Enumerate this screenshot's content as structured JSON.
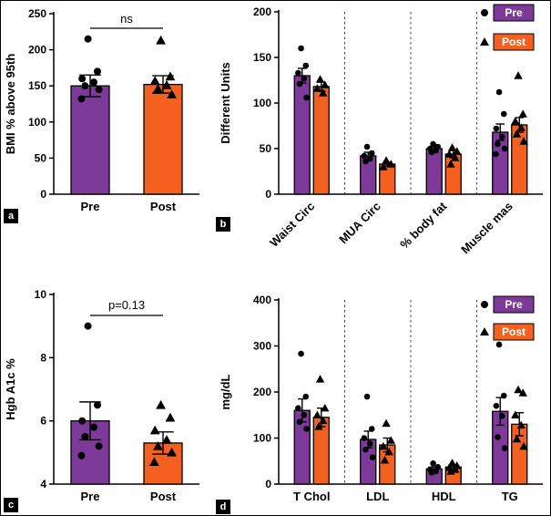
{
  "figure": {
    "background": "#ffffff",
    "border_color": "#000000"
  },
  "colors": {
    "pre": "#7d3a98",
    "post": "#f4601f",
    "marker": "#000000",
    "axis": "#000000",
    "separator": "#333333",
    "panel_label_bg": "#000000",
    "panel_label_fg": "#ffffff",
    "legend_text": "#ffffff"
  },
  "series_labels": {
    "pre": "Pre",
    "post": "Post"
  },
  "panel_labels": [
    "a",
    "b",
    "c",
    "d"
  ],
  "chart_data": [
    {
      "id": "a",
      "type": "bar",
      "panel_label": "a",
      "title": "",
      "ylabel": "BMI % above 95th",
      "xlabel": "",
      "ylim": [
        0,
        250
      ],
      "yticks": [
        0,
        50,
        100,
        150,
        200,
        250
      ],
      "annotation": "ns",
      "legend": false,
      "legend_position": null,
      "separators": false,
      "xlabel_rotate": false,
      "categories": [
        "Pre",
        "Post"
      ],
      "groups": [
        {
          "label": "Pre",
          "bars": [
            {
              "series": "pre",
              "marker": "circle",
              "value": 150,
              "err": 15,
              "points": [
                215,
                170,
                160,
                155,
                150,
                145,
                132
              ]
            }
          ]
        },
        {
          "label": "Post",
          "bars": [
            {
              "series": "post",
              "marker": "triangle",
              "value": 152,
              "err": 12,
              "points": [
                213,
                163,
                157,
                151,
                146,
                138
              ]
            }
          ]
        }
      ]
    },
    {
      "id": "b",
      "type": "bar",
      "panel_label": "b",
      "title": "",
      "ylabel": "Different Units",
      "xlabel": "",
      "ylim": [
        0,
        200
      ],
      "yticks": [
        0,
        50,
        100,
        150,
        200
      ],
      "annotation": null,
      "legend": true,
      "legend_position": "top-right",
      "separators": true,
      "xlabel_rotate": true,
      "categories": [
        "Waist Circ",
        "MUA Circ",
        "% body fat",
        "Muscle mas"
      ],
      "groups": [
        {
          "label": "Waist Circ",
          "bars": [
            {
              "series": "pre",
              "marker": "circle",
              "value": 130,
              "err": 8,
              "points": [
                160,
                141,
                133,
                127,
                121,
                106
              ]
            },
            {
              "series": "post",
              "marker": "triangle",
              "value": 118,
              "err": 5,
              "points": [
                126,
                120,
                116,
                111
              ]
            }
          ]
        },
        {
          "label": "MUA Circ",
          "bars": [
            {
              "series": "pre",
              "marker": "circle",
              "value": 42,
              "err": 4,
              "points": [
                52,
                45,
                42,
                39,
                36
              ]
            },
            {
              "series": "post",
              "marker": "triangle",
              "value": 33,
              "err": 2,
              "points": [
                37,
                33,
                30
              ]
            }
          ]
        },
        {
          "label": "% body fat",
          "bars": [
            {
              "series": "pre",
              "marker": "circle",
              "value": 50,
              "err": 2,
              "points": [
                55,
                52,
                50,
                48,
                46
              ]
            },
            {
              "series": "post",
              "marker": "triangle",
              "value": 44,
              "err": 4,
              "points": [
                51,
                47,
                44,
                40,
                33
              ]
            }
          ]
        },
        {
          "label": "Muscle mas",
          "bars": [
            {
              "series": "pre",
              "marker": "circle",
              "value": 68,
              "err": 9,
              "points": [
                112,
                88,
                72,
                63,
                55,
                50,
                44
              ]
            },
            {
              "series": "post",
              "marker": "triangle",
              "value": 76,
              "err": 8,
              "points": [
                130,
                88,
                80,
                73,
                66,
                58
              ]
            }
          ]
        }
      ]
    },
    {
      "id": "c",
      "type": "bar",
      "panel_label": "c",
      "title": "",
      "ylabel": "Hgb A1c %",
      "xlabel": "",
      "ylim": [
        4,
        10
      ],
      "yticks": [
        4,
        6,
        8,
        10
      ],
      "annotation": "p=0.13",
      "legend": false,
      "legend_position": null,
      "separators": false,
      "xlabel_rotate": false,
      "categories": [
        "Pre",
        "Post"
      ],
      "groups": [
        {
          "label": "Pre",
          "bars": [
            {
              "series": "pre",
              "marker": "circle",
              "value": 6.0,
              "err": 0.6,
              "points": [
                9.0,
                6.5,
                6.0,
                5.8,
                5.5,
                5.2,
                4.9
              ]
            }
          ]
        },
        {
          "label": "Post",
          "bars": [
            {
              "series": "post",
              "marker": "triangle",
              "value": 5.3,
              "err": 0.35,
              "points": [
                6.5,
                6.1,
                5.7,
                5.4,
                5.2,
                5.0,
                4.7
              ]
            }
          ]
        }
      ]
    },
    {
      "id": "d",
      "type": "bar",
      "panel_label": "d",
      "title": "",
      "ylabel": "mg/dL",
      "xlabel": "",
      "ylim": [
        0,
        400
      ],
      "yticks": [
        0,
        100,
        200,
        300,
        400
      ],
      "annotation": null,
      "legend": true,
      "legend_position": "top-right",
      "separators": true,
      "xlabel_rotate": false,
      "categories": [
        "T Chol",
        "LDL",
        "HDL",
        "TG"
      ],
      "groups": [
        {
          "label": "T Chol",
          "bars": [
            {
              "series": "pre",
              "marker": "circle",
              "value": 160,
              "err": 25,
              "points": [
                283,
                190,
                165,
                150,
                135,
                120
              ]
            },
            {
              "series": "post",
              "marker": "triangle",
              "value": 145,
              "err": 20,
              "points": [
                228,
                165,
                150,
                138,
                125
              ]
            }
          ]
        },
        {
          "label": "LDL",
          "bars": [
            {
              "series": "pre",
              "marker": "circle",
              "value": 97,
              "err": 18,
              "points": [
                190,
                120,
                100,
                88,
                75,
                58
              ]
            },
            {
              "series": "post",
              "marker": "triangle",
              "value": 85,
              "err": 15,
              "points": [
                132,
                95,
                82,
                70,
                52
              ]
            }
          ]
        },
        {
          "label": "HDL",
          "bars": [
            {
              "series": "pre",
              "marker": "circle",
              "value": 33,
              "err": 4,
              "points": [
                45,
                37,
                32,
                28,
                25
              ]
            },
            {
              "series": "post",
              "marker": "triangle",
              "value": 37,
              "err": 4,
              "points": [
                46,
                40,
                36,
                32,
                28
              ]
            }
          ]
        },
        {
          "label": "TG",
          "bars": [
            {
              "series": "pre",
              "marker": "circle",
              "value": 158,
              "err": 30,
              "points": [
                303,
                192,
                170,
                148,
                102,
                78
              ]
            },
            {
              "series": "post",
              "marker": "triangle",
              "value": 130,
              "err": 25,
              "points": [
                205,
                198,
                150,
                128,
                98,
                82
              ]
            }
          ]
        }
      ]
    }
  ]
}
